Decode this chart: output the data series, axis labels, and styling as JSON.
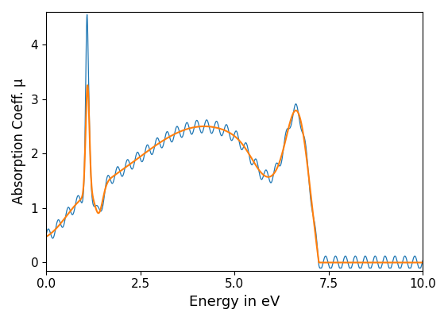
{
  "title": "",
  "xlabel": "Energy in eV",
  "ylabel": "Absorption Coeff. μ",
  "xlim": [
    0.0,
    10.0
  ],
  "ylim": [
    -0.15,
    4.6
  ],
  "xticks": [
    0.0,
    2.5,
    5.0,
    7.5,
    10.0
  ],
  "yticks": [
    0,
    1,
    2,
    3,
    4
  ],
  "line_color_noisy": "#1f77b4",
  "line_color_smooth": "#ff7f0e",
  "background_color": "#ffffff",
  "figsize": [
    5.64,
    4.04
  ],
  "dpi": 100
}
